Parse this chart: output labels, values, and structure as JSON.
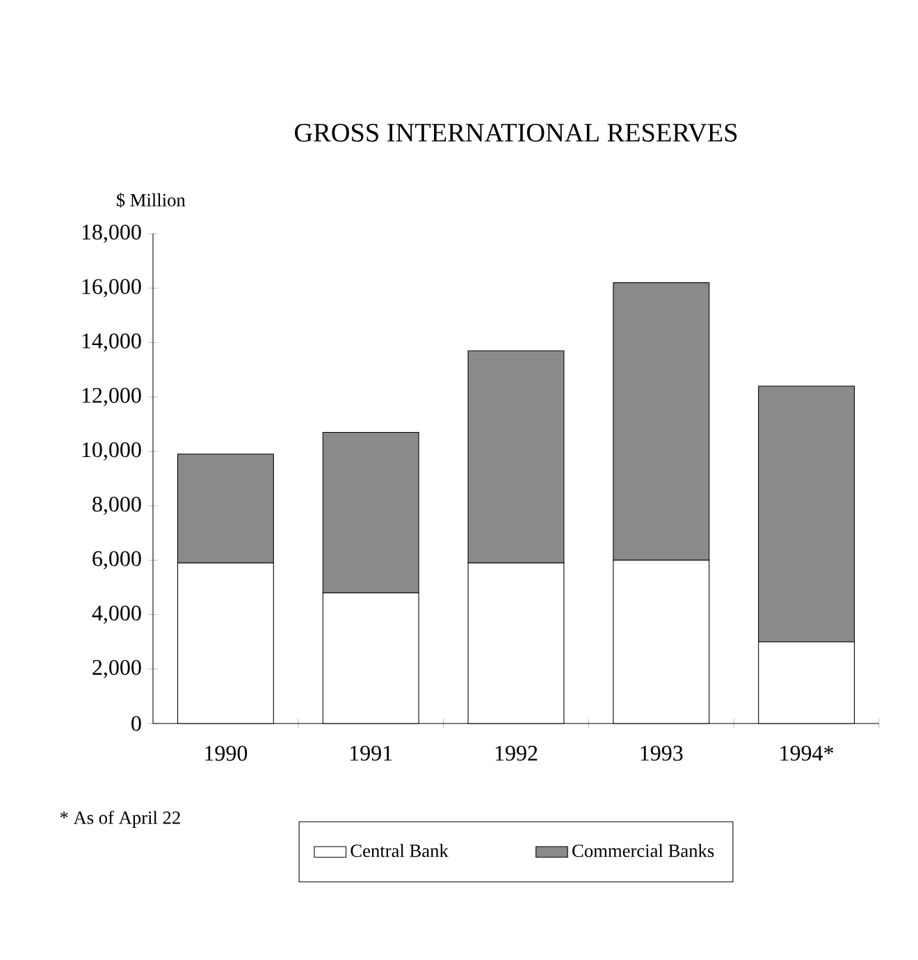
{
  "chart_data": {
    "type": "bar",
    "stacked": true,
    "title": "GROSS INTERNATIONAL RESERVES",
    "ylabel": "$ Million",
    "categories": [
      "1990",
      "1991",
      "1992",
      "1993",
      "1994*"
    ],
    "series": [
      {
        "name": "Central Bank",
        "color": "#ffffff",
        "values": [
          5900,
          4800,
          5900,
          6000,
          3000
        ]
      },
      {
        "name": "Commercial Banks",
        "color": "#8a8a8a",
        "values": [
          4000,
          5900,
          7800,
          10200,
          9400
        ]
      }
    ],
    "ylim": [
      0,
      18000
    ],
    "yticks": [
      {
        "value": 0,
        "label": "0"
      },
      {
        "value": 2000,
        "label": "2,000"
      },
      {
        "value": 4000,
        "label": "4,000"
      },
      {
        "value": 6000,
        "label": "6,000"
      },
      {
        "value": 8000,
        "label": "8,000"
      },
      {
        "value": 10000,
        "label": "10,000"
      },
      {
        "value": 12000,
        "label": "12,000"
      },
      {
        "value": 14000,
        "label": "14,000"
      },
      {
        "value": 16000,
        "label": "16,000"
      },
      {
        "value": 18000,
        "label": "18,000"
      }
    ],
    "legend": "bottom",
    "annotations": [
      "* As of April 22"
    ]
  }
}
